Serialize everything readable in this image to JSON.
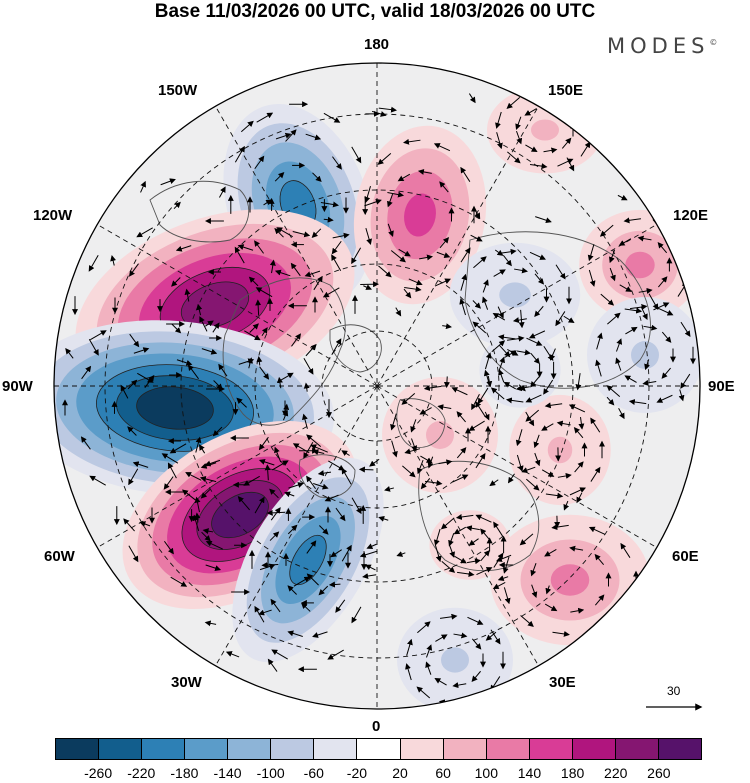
{
  "title": "Base 11/03/2026 00 UTC, valid 18/03/2026 00 UTC",
  "brand": "MODES",
  "brand_mark": "©",
  "longitude_labels": {
    "top": "180",
    "top_left": "150W",
    "top_right": "150E",
    "upper_left": "120W",
    "upper_right": "120E",
    "left": "90W",
    "right": "90E",
    "lower_left": "60W",
    "lower_right": "60E",
    "bottom_left": "30W",
    "bottom_right": "30E",
    "bottom": "0"
  },
  "reference_vector": "30",
  "colorbar": {
    "colors": [
      "#0b3b5e",
      "#125e8d",
      "#2d80b5",
      "#5b9cc9",
      "#8db4d7",
      "#bcc9e2",
      "#e2e4ef",
      "#ffffff",
      "#f8d9db",
      "#f2b2c0",
      "#e97aa6",
      "#d93c96",
      "#b0157e",
      "#851671",
      "#56126a"
    ],
    "ticks": [
      "-260",
      "-220",
      "-180",
      "-140",
      "-100",
      "-60",
      "-20",
      "20",
      "60",
      "100",
      "140",
      "180",
      "220",
      "260"
    ]
  },
  "anomaly_cells": [
    {
      "sign": "neg",
      "level": 5
    },
    {
      "sign": "pos",
      "level": 4
    },
    {
      "sign": "neg",
      "level": 2
    },
    {
      "sign": "pos",
      "level": 6
    },
    {
      "sign": "neg",
      "level": 7
    },
    {
      "sign": "pos",
      "level": 7
    },
    {
      "sign": "neg",
      "level": 5
    },
    {
      "sign": "pos",
      "level": 2
    },
    {
      "sign": "neg",
      "level": 2
    },
    {
      "sign": "pos",
      "level": 3
    },
    {
      "sign": "pos",
      "level": 3
    },
    {
      "sign": "neg",
      "level": 2
    },
    {
      "sign": "pos",
      "level": 2
    },
    {
      "sign": "pos",
      "level": 2
    },
    {
      "sign": "neg",
      "level": 1
    },
    {
      "sign": "pos",
      "level": 1
    }
  ]
}
